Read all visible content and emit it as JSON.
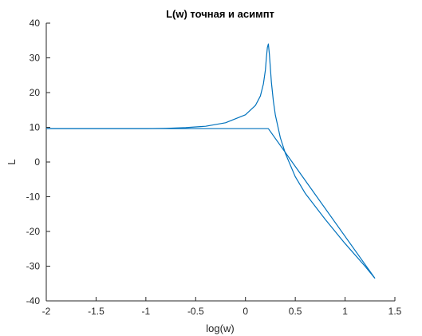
{
  "chart_data": {
    "type": "line",
    "title": "L(w) точная и асимпт",
    "xlabel": "log(w)",
    "ylabel": "L",
    "xlim": [
      -2,
      1.5
    ],
    "ylim": [
      -40,
      40
    ],
    "xticks": [
      "-2",
      "-1.5",
      "-1",
      "-0.5",
      "0",
      "0.5",
      "1",
      "1.5"
    ],
    "yticks": [
      "40",
      "30",
      "20",
      "10",
      "0",
      "-10",
      "-20",
      "-30",
      "-40"
    ],
    "grid": false,
    "line_color": "#0072BD",
    "series": [
      {
        "x": [
          -2,
          -1.5,
          -1,
          -0.8,
          -0.6,
          -0.4,
          -0.2,
          0,
          0.1,
          0.15,
          0.18,
          0.2,
          0.21,
          0.22,
          0.23,
          0.24,
          0.26,
          0.28,
          0.3,
          0.35,
          0.4,
          0.5,
          0.6,
          0.8,
          1.0,
          1.2,
          1.3
        ],
        "y": [
          9.6,
          9.6,
          9.6,
          9.7,
          9.9,
          10.3,
          11.3,
          13.6,
          16.3,
          19.0,
          22.5,
          26.5,
          30.0,
          33.0,
          34.0,
          31.0,
          23.0,
          17.5,
          13.5,
          7.0,
          2.5,
          -4.2,
          -9.0,
          -16.5,
          -23.5,
          -30.0,
          -33.5
        ]
      },
      {
        "x": [
          -2,
          0.23,
          1.3
        ],
        "y": [
          9.6,
          9.6,
          -33.5
        ]
      }
    ]
  }
}
